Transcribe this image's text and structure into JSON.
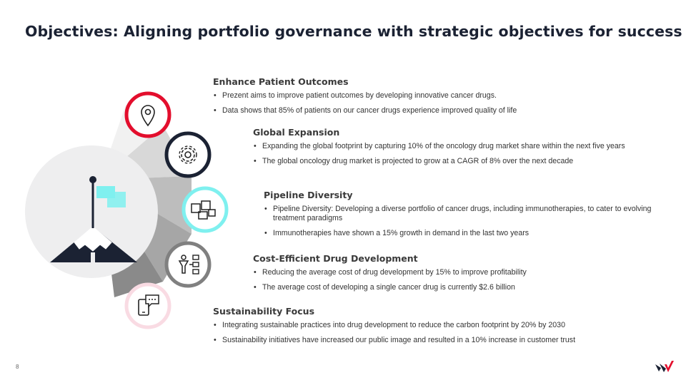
{
  "title": "Objectives: Aligning portfolio governance with strategic objectives for success",
  "page_number": "8",
  "colors": {
    "red": "#e30e2d",
    "navy": "#1b2233",
    "cyan": "#7ff0ef",
    "gray": "#808080",
    "pink": "#f9dbe3"
  },
  "sections": [
    {
      "heading": "Enhance Patient Outcomes",
      "icon": "location-pin-icon",
      "bullets": [
        "Prezent  aims to improve patient outcomes by developing innovative cancer drugs.",
        "Data shows that 85% of patients on our cancer drugs experience improved quality of life"
      ]
    },
    {
      "heading": "Global Expansion",
      "icon": "gear-icon",
      "bullets": [
        "Expanding the global footprint by capturing 10% of the oncology drug market share within the next five years",
        "The global oncology drug market is projected to grow at a CAGR of 8% over the next decade"
      ]
    },
    {
      "heading": "Pipeline Diversity",
      "icon": "puzzle-icon",
      "bullets": [
        "Pipeline Diversity: Developing a diverse portfolio of cancer drugs, including immunotherapies, to cater to evolving treatment paradigms",
        "Immunotherapies have shown a 15% growth in demand in the last two years"
      ]
    },
    {
      "heading": "Cost-Efficient Drug Development",
      "icon": "workflow-icon",
      "bullets": [
        "Reducing the average cost of drug development by 15% to improve profitability",
        "The average cost of developing a single cancer drug is currently $2.6 billion"
      ]
    },
    {
      "heading": "Sustainability Focus",
      "icon": "mobile-chat-icon",
      "bullets": [
        "Integrating sustainable practices into drug development to reduce the carbon footprint by 20% by 2030",
        "Sustainability initiatives have increased our public image and resulted in a 10% increase in customer trust"
      ]
    }
  ]
}
